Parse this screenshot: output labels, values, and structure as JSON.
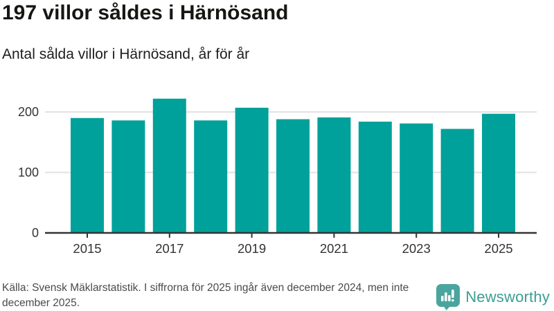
{
  "header": {
    "title": "197 villor såldes i Härnösand",
    "subtitle": "Antal sålda villor i Härnösand, år för år"
  },
  "chart_data": {
    "type": "bar",
    "title": "197 villor såldes i Härnösand",
    "subtitle": "Antal sålda villor i Härnösand, år för år",
    "categories": [
      "2015",
      "2016",
      "2017",
      "2018",
      "2019",
      "2020",
      "2021",
      "2022",
      "2023",
      "2024",
      "2025"
    ],
    "values": [
      190,
      186,
      222,
      186,
      207,
      188,
      191,
      184,
      181,
      172,
      197
    ],
    "xlabel": "",
    "ylabel": "",
    "ylim": [
      0,
      230
    ],
    "yticks": [
      0,
      100,
      200
    ],
    "xtick_labels_shown": [
      "2015",
      "2017",
      "2019",
      "2021",
      "2023",
      "2025"
    ],
    "grid": "horizontal",
    "legend": "none",
    "bar_color": "#00A19A"
  },
  "footer": {
    "source": "Källa: Svensk Mäklarstatistik. I siffrorna för 2025 ingår även december 2024, men inte december 2025.",
    "logo_text": "Newsworthy"
  },
  "colors": {
    "bar": "#00A19A",
    "axis": "#333333",
    "grid": "#e2e2e2",
    "tick_label": "#333333",
    "title_text": "#161613",
    "source_text": "#4a4a4a",
    "logo_bubble": "#4aa59e",
    "logo_text": "#3c9d96"
  }
}
